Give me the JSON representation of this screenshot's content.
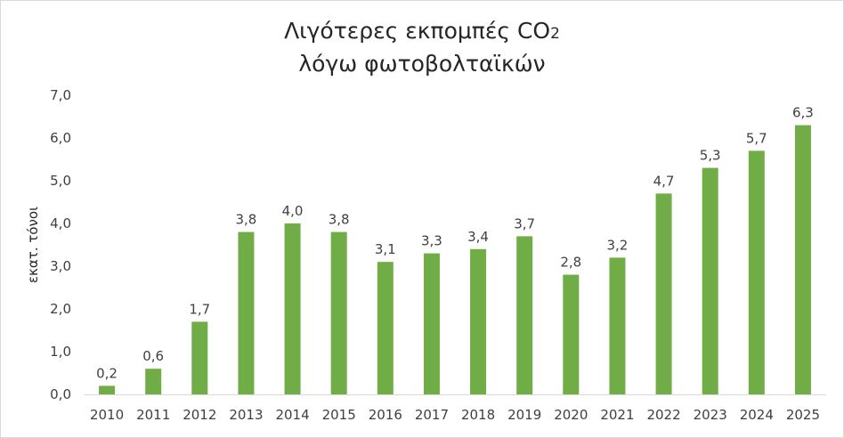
{
  "chart_data": {
    "type": "bar",
    "title_line1": "Λιγότερες εκπομπές CO",
    "title_sub": "2",
    "title_line2": "λόγω φωτοβολταϊκών",
    "ylabel": "εκατ. τόνοι",
    "xlabel": "",
    "ylim": [
      0,
      7
    ],
    "yticks": [
      "0,0",
      "1,0",
      "2,0",
      "3,0",
      "4,0",
      "5,0",
      "6,0",
      "7,0"
    ],
    "categories": [
      "2010",
      "2011",
      "2012",
      "2013",
      "2014",
      "2015",
      "2016",
      "2017",
      "2018",
      "2019",
      "2020",
      "2021",
      "2022",
      "2023",
      "2024",
      "2025"
    ],
    "values": [
      0.2,
      0.6,
      1.7,
      3.8,
      4.0,
      3.8,
      3.1,
      3.3,
      3.4,
      3.7,
      2.8,
      3.2,
      4.7,
      5.3,
      5.7,
      6.3
    ],
    "data_labels": [
      "0,2",
      "0,6",
      "1,7",
      "3,8",
      "4,0",
      "3,8",
      "3,1",
      "3,3",
      "3,4",
      "3,7",
      "2,8",
      "3,2",
      "4,7",
      "5,3",
      "5,7",
      "6,3"
    ],
    "bar_color": "#70ad47",
    "grid": false,
    "legend": "none"
  }
}
